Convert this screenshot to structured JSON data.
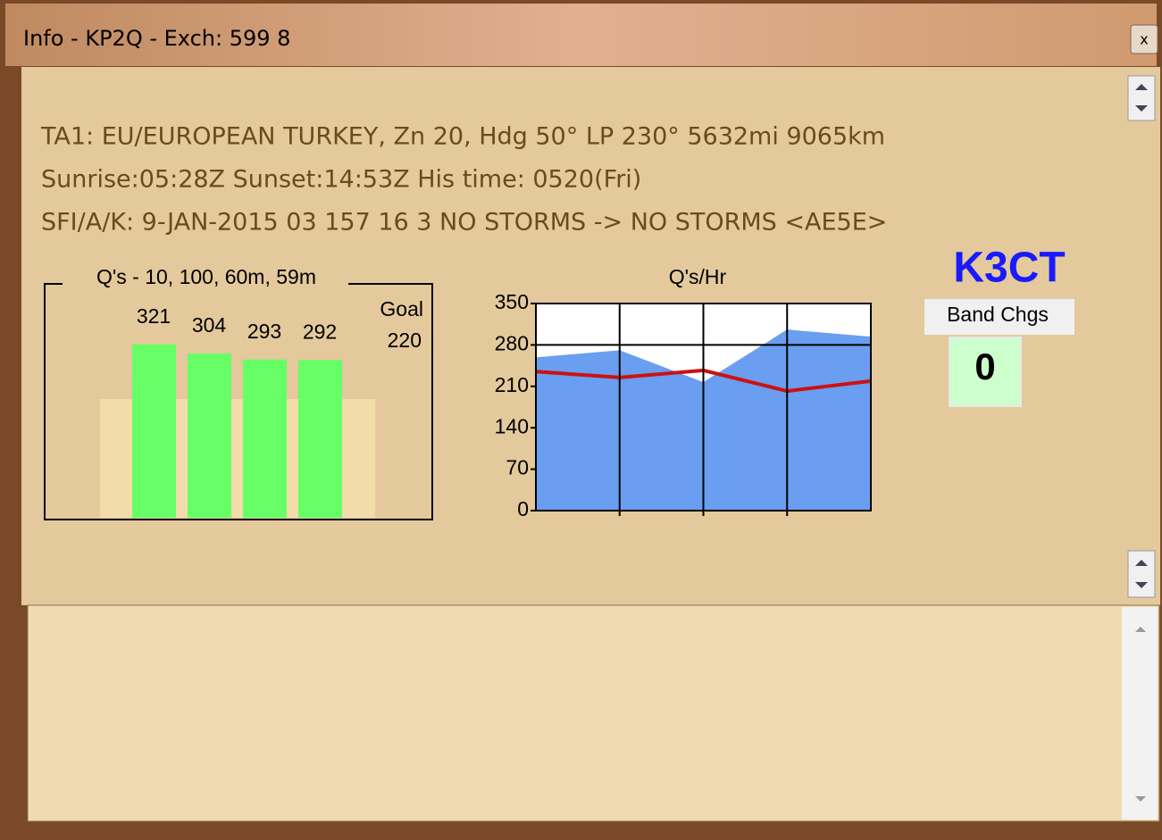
{
  "window": {
    "title": "Info - KP2Q - Exch: 599 8"
  },
  "info_lines": [
    "TA1: EU/EUROPEAN TURKEY, Zn 20, Hdg 50° LP 230° 5632mi 9065km",
    "Sunrise:05:28Z Sunset:14:53Z His time: 0520(Fri)",
    "SFI/A/K: 9-JAN-2015 03 157 16 3 NO STORMS -> NO STORMS <AE5E>"
  ],
  "callsign": "K3CT",
  "band_changes": {
    "label": "Band Chgs",
    "value": 0
  },
  "chart_data": [
    {
      "type": "bar",
      "title": "Q's - 10, 100, 60m, 59m",
      "values": [
        321,
        304,
        293,
        292
      ],
      "color": "#66ff66",
      "goal_label": "Goal",
      "goal": 220,
      "goal_color": "#f2dcaa"
    },
    {
      "type": "area-line",
      "title": "Q's/Hr",
      "categories": [
        null,
        null,
        null,
        null,
        null
      ],
      "ylim": [
        0,
        350
      ],
      "yticks": [
        0,
        70,
        140,
        210,
        280,
        350
      ],
      "grid": true,
      "series": [
        {
          "color": "#6a9ef0",
          "values": [
            259,
            271,
            217,
            306,
            294
          ]
        },
        {
          "color": "#cc1111",
          "values": [
            235,
            225,
            237,
            202,
            219
          ]
        }
      ]
    }
  ]
}
